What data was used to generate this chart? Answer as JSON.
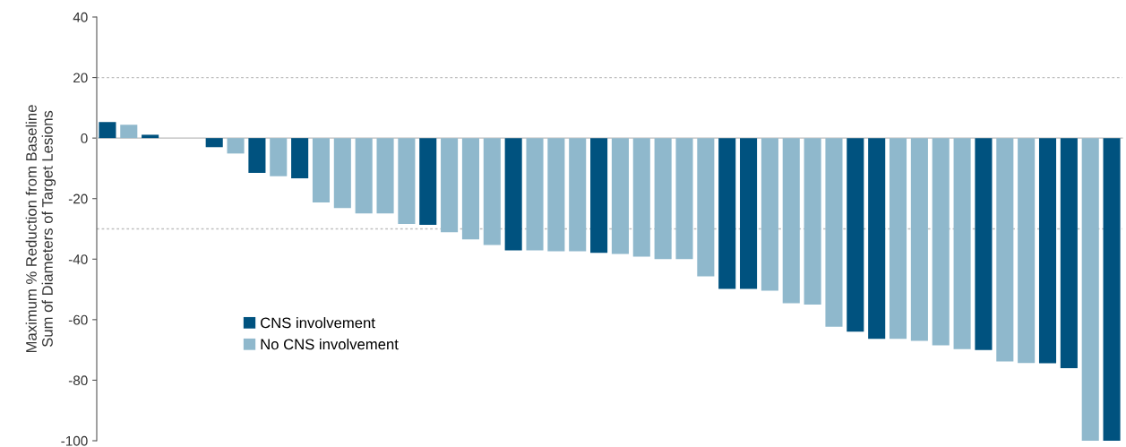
{
  "chart_data": {
    "type": "bar",
    "ylabel": "Maximum % Reduction from Baseline\nSum of Diameters of Target Lesions",
    "categories": [
      null,
      null,
      null,
      null,
      null,
      null,
      null,
      null,
      null,
      null,
      null,
      null,
      null,
      null,
      null,
      null,
      null,
      null,
      null,
      null,
      null,
      null,
      null,
      null,
      null,
      null,
      null,
      null,
      null,
      null,
      null,
      null,
      null,
      null,
      null,
      null,
      null,
      null,
      null,
      null,
      null,
      null,
      null,
      null,
      null,
      null,
      null,
      null
    ],
    "series": [
      {
        "name": "CNS involvement",
        "color": "#00527f",
        "values": [
          5.3,
          null,
          1.1,
          null,
          null,
          -3,
          null,
          -11.5,
          null,
          -13.3,
          null,
          null,
          null,
          null,
          null,
          -28.7,
          null,
          null,
          null,
          -37.1,
          null,
          null,
          null,
          -37.9,
          null,
          null,
          null,
          null,
          null,
          -49.8,
          -49.8,
          null,
          null,
          null,
          null,
          -64,
          -66.3,
          null,
          null,
          null,
          null,
          -70,
          null,
          null,
          -74.4,
          -76,
          null,
          -100
        ]
      },
      {
        "name": "No CNS involvement",
        "color": "#8fb8cc",
        "values": [
          null,
          4.4,
          null,
          null,
          null,
          null,
          -5.1,
          null,
          -12.6,
          null,
          -21.3,
          -23.1,
          -24.9,
          -24.9,
          -28.4,
          null,
          -31.1,
          -33.5,
          -35.3,
          null,
          -37.1,
          -37.4,
          -37.4,
          null,
          -38.3,
          -39.2,
          -40,
          -40,
          -45.7,
          null,
          null,
          -50.4,
          -54.6,
          -55,
          -62.3,
          null,
          null,
          -66.3,
          -67,
          -68.5,
          -69.7,
          null,
          -73.8,
          -74.3,
          null,
          null,
          -100,
          null
        ]
      }
    ],
    "ylim": [
      -100,
      40
    ],
    "yticks": [
      -100,
      -80,
      -60,
      -40,
      -20,
      0,
      20,
      40
    ],
    "ref_lines": [
      {
        "axis": "y",
        "value": 20,
        "color": "#bfbfbf",
        "line_style": "dotted"
      },
      {
        "axis": "y",
        "value": -30,
        "color": "#bfbfbf",
        "line_style": "dotted"
      }
    ],
    "legend": "left",
    "tick_labels": "y"
  }
}
